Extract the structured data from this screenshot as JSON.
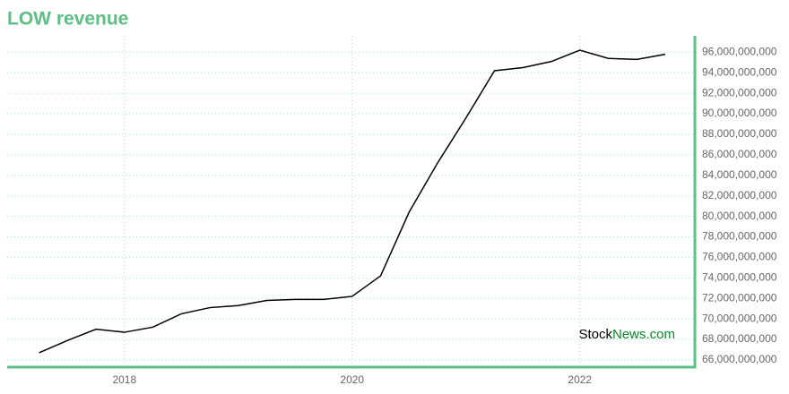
{
  "chart_data": {
    "type": "line",
    "title": "LOW revenue",
    "x": [
      2017.25,
      2017.5,
      2017.75,
      2018,
      2018.25,
      2018.5,
      2018.75,
      2019,
      2019.25,
      2019.5,
      2019.75,
      2020,
      2020.25,
      2020.5,
      2020.75,
      2021,
      2021.25,
      2021.5,
      2021.75,
      2022,
      2022.25,
      2022.5,
      2022.75
    ],
    "series": [
      {
        "color": "#000000",
        "values": [
          66700000000,
          67900000000,
          69000000000,
          68700000000,
          69200000000,
          70500000000,
          71100000000,
          71300000000,
          71800000000,
          71900000000,
          71900000000,
          72200000000,
          74200000000,
          80400000000,
          85200000000,
          89600000000,
          94200000000,
          94500000000,
          95100000000,
          96200000000,
          95400000000,
          95300000000,
          95800000000
        ]
      }
    ],
    "xlim": [
      2016.97,
      2023.01
    ],
    "xticks": [
      2018,
      2020,
      2022
    ],
    "ylim": [
      65300000000,
      97600000000
    ],
    "yticks": [
      {
        "value": 66000000000,
        "label": "66,000,000,000"
      },
      {
        "value": 68000000000,
        "label": "68,000,000,000"
      },
      {
        "value": 70000000000,
        "label": "70,000,000,000"
      },
      {
        "value": 72000000000,
        "label": "72,000,000,000"
      },
      {
        "value": 74000000000,
        "label": "74,000,000,000"
      },
      {
        "value": 76000000000,
        "label": "76,000,000,000"
      },
      {
        "value": 78000000000,
        "label": "78,000,000,000"
      },
      {
        "value": 80000000000,
        "label": "80,000,000,000"
      },
      {
        "value": 82000000000,
        "label": "82,000,000,000"
      },
      {
        "value": 84000000000,
        "label": "84,000,000,000"
      },
      {
        "value": 86000000000,
        "label": "86,000,000,000"
      },
      {
        "value": 88000000000,
        "label": "88,000,000,000"
      },
      {
        "value": 90000000000,
        "label": "90,000,000,000"
      },
      {
        "value": 92000000000,
        "label": "92,000,000,000"
      },
      {
        "value": 94000000000,
        "label": "94,000,000,000"
      },
      {
        "value": 96000000000,
        "label": "96,000,000,000"
      }
    ],
    "grid": true,
    "axis_color": "#5cbf84",
    "watermark": [
      "Stock",
      "News.com"
    ]
  }
}
